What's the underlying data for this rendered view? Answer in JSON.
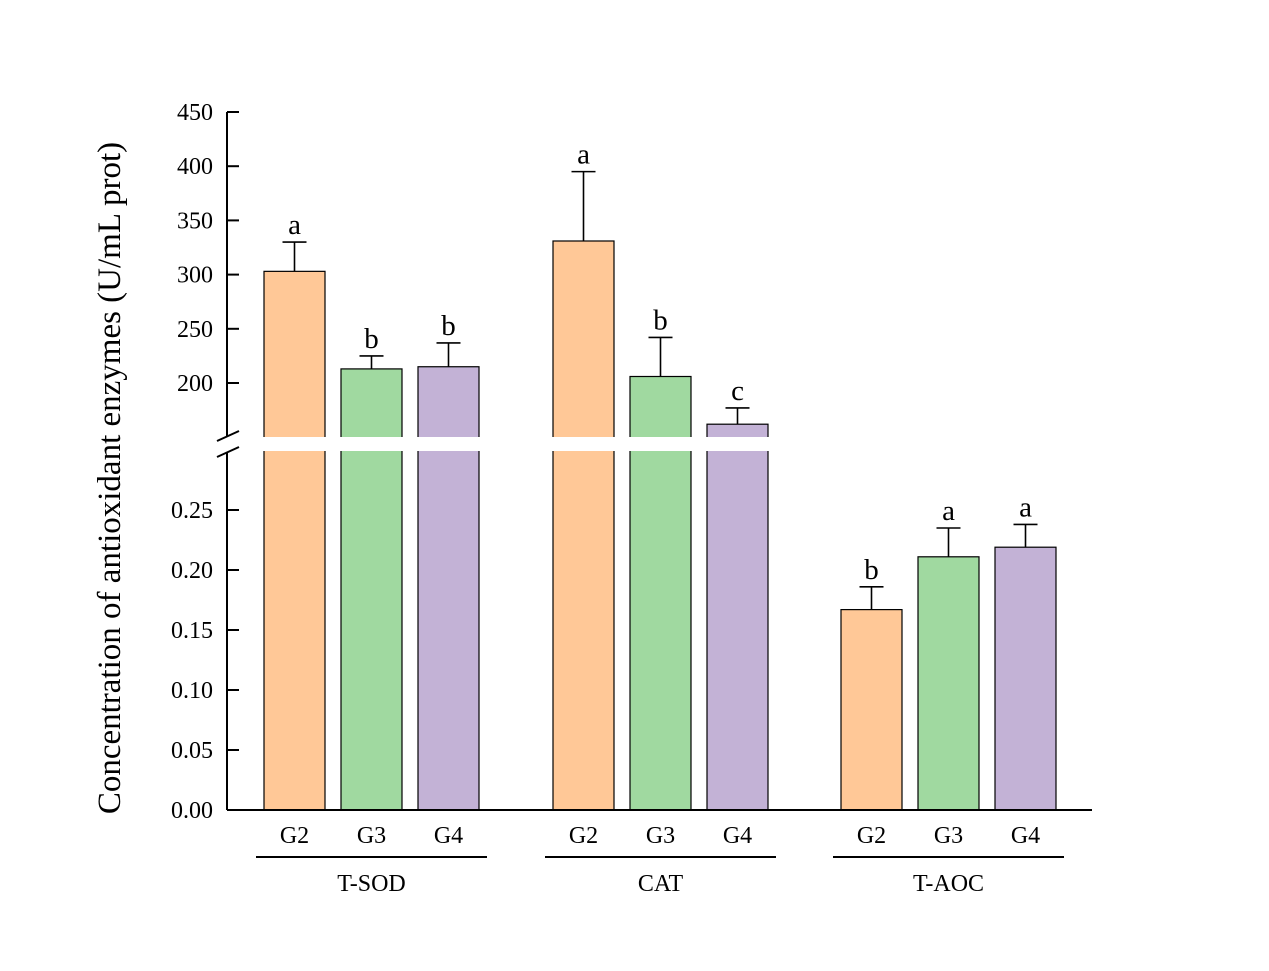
{
  "chart_data": {
    "type": "bar",
    "ylabel": "Concentration of antioxidant enzymes (U/mL prot)",
    "xlabel": "",
    "title": "",
    "y_axis_break": true,
    "upper_axis": {
      "ylim": [
        150,
        450
      ],
      "ticks": [
        "450",
        "400",
        "350",
        "300",
        "250",
        "200"
      ],
      "tick_values": [
        450,
        400,
        350,
        300,
        250,
        200
      ]
    },
    "lower_axis": {
      "ylim": [
        0,
        0.29
      ],
      "ticks": [
        "0.25",
        "0.20",
        "0.15",
        "0.10",
        "0.05",
        "0.00"
      ],
      "tick_values": [
        0.25,
        0.2,
        0.15,
        0.1,
        0.05,
        0
      ]
    },
    "categories": [
      "G2",
      "G3",
      "G4"
    ],
    "colors": {
      "G2": "#FFC897",
      "G3": "#A0D9A0",
      "G4": "#C3B2D6"
    },
    "groups": [
      {
        "name": "T-SOD",
        "axis": "upper",
        "bars": [
          {
            "category": "G2",
            "value": 303,
            "error": 27,
            "sig": "a"
          },
          {
            "category": "G3",
            "value": 213,
            "error": 12,
            "sig": "b"
          },
          {
            "category": "G4",
            "value": 215,
            "error": 22,
            "sig": "b"
          }
        ]
      },
      {
        "name": "CAT",
        "axis": "upper",
        "bars": [
          {
            "category": "G2",
            "value": 331,
            "error": 64,
            "sig": "a"
          },
          {
            "category": "G3",
            "value": 206,
            "error": 36,
            "sig": "b"
          },
          {
            "category": "G4",
            "value": 162,
            "error": 15,
            "sig": "c"
          }
        ]
      },
      {
        "name": "T-AOC",
        "axis": "lower",
        "bars": [
          {
            "category": "G2",
            "value": 0.167,
            "error": 0.019,
            "sig": "b"
          },
          {
            "category": "G3",
            "value": 0.211,
            "error": 0.024,
            "sig": "a"
          },
          {
            "category": "G4",
            "value": 0.219,
            "error": 0.019,
            "sig": "a"
          }
        ]
      }
    ]
  }
}
